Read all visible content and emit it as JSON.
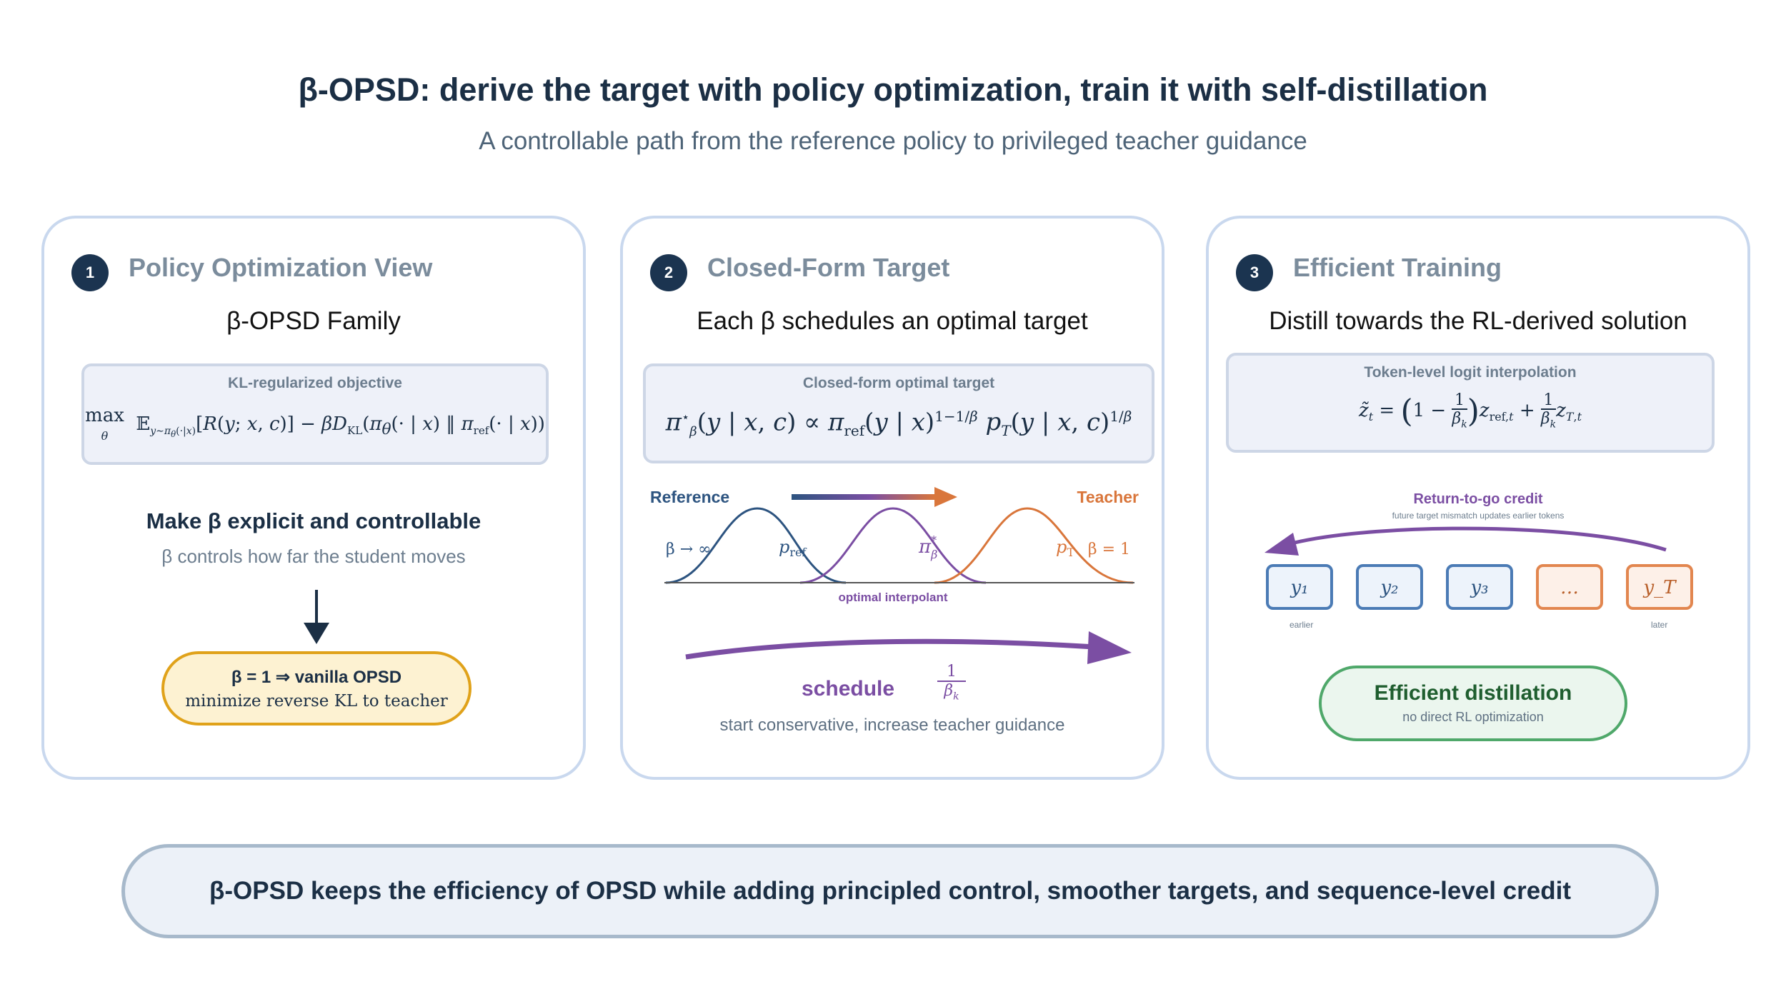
{
  "header": {
    "title": "β-OPSD: derive the target with policy optimization, train it with self-distillation",
    "subtitle": "A controllable path from the reference policy to privileged teacher guidance"
  },
  "panel1": {
    "number": "1",
    "title": "Policy Optimization View",
    "subtitle": "β-OPSD Family",
    "box_label": "KL-regularized objective",
    "heading": "Make β explicit and controllable",
    "caption": "β controls how far the student moves",
    "result_title": "β = 1 ⇒ vanilla OPSD",
    "result_caption": "minimize reverse KL to teacher"
  },
  "panel2": {
    "number": "2",
    "title": "Closed-Form Target",
    "subtitle": "Each β schedules an optimal target",
    "box_label": "Closed-form optimal target",
    "reference_label": "Reference",
    "teacher_label": "Teacher",
    "beta_inf": "β → ∞",
    "beta_one": "β = 1",
    "interp_label": "optimal interpolant",
    "schedule_label": "schedule",
    "schedule_caption": "start conservative, increase teacher guidance"
  },
  "panel3": {
    "number": "3",
    "title": "Efficient Training",
    "subtitle": "Distill towards the RL-derived solution",
    "box_label": "Token-level logit interpolation",
    "credit_title": "Return-to-go credit",
    "credit_caption": "future target mismatch updates earlier tokens",
    "tokens": [
      "y₁",
      "y₂",
      "y₃",
      "…",
      "y_T"
    ],
    "earlier_label": "earlier",
    "later_label": "later",
    "result_title": "Efficient distillation",
    "result_caption": "no direct RL optimization"
  },
  "footer": {
    "text": "β-OPSD keeps the efficiency of OPSD while adding principled control, smoother targets, and sequence-level credit"
  },
  "colors": {
    "navy": "#1b2f45",
    "reference_blue": "#2d5480",
    "interpolant_purple": "#7b4ea3",
    "teacher_orange": "#d9763b",
    "result_yellow": "#fdf2d2",
    "result_green": "#ebf6ee"
  }
}
